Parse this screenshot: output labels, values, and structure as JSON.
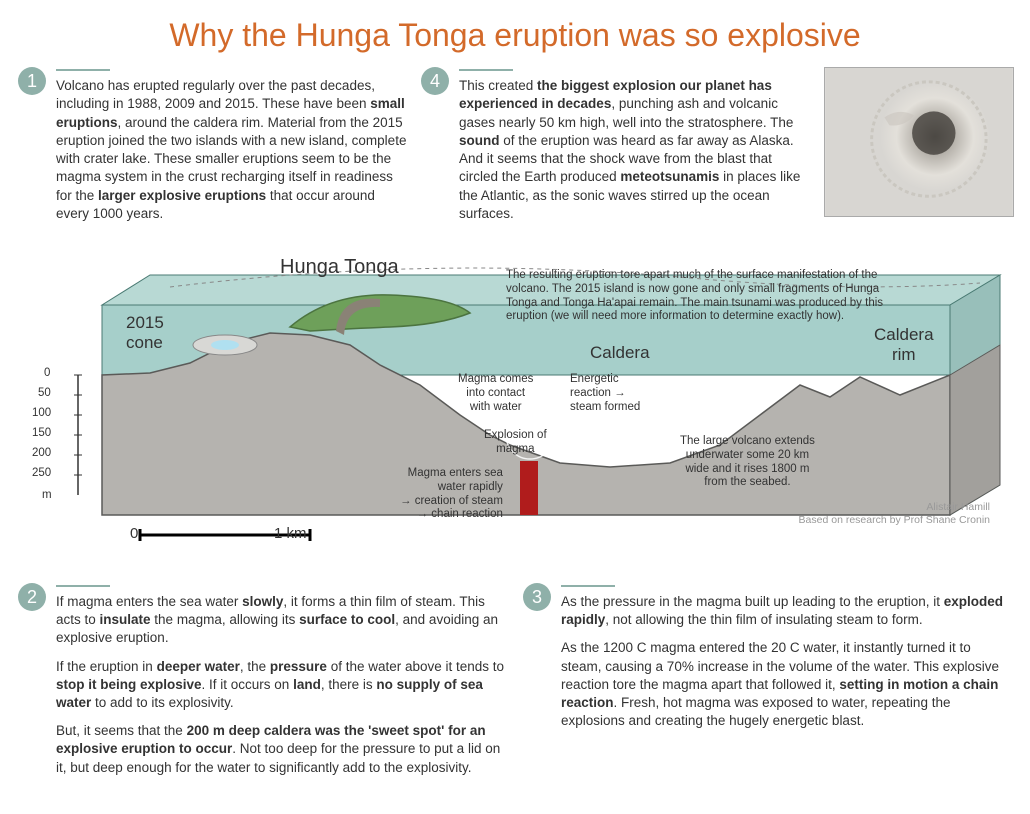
{
  "title": "Why the Hunga Tonga eruption was so explosive",
  "accent_color": "#d36a2a",
  "badge_color": "#8fb0a9",
  "rule_color": "#8fb0a9",
  "block1": {
    "num": "1",
    "html": "Volcano has erupted regularly over the past decades, including in 1988, 2009 and 2015. These have been <b>small eruptions</b>, around the caldera rim. Material from the 2015 eruption joined the two islands with a new island, complete with crater lake. These smaller eruptions seem to be the magma system in the crust recharging itself in readiness for the <b>larger explosive eruptions</b> that occur around every 1000 years."
  },
  "block4": {
    "num": "4",
    "html": "This created <b>the biggest explosion our planet has experienced in decades</b>, punching ash and volcanic gases nearly 50 km high, well into the stratosphere. The <b>sound</b> of the eruption was heard as far away as Alaska. And it seems that the shock wave from the blast that circled the Earth produced <b>meteotsunamis</b> in places like the Atlantic, as the sonic waves stirred up the ocean surfaces."
  },
  "block2": {
    "num": "2",
    "p1": "If magma enters the sea water <b>slowly</b>, it forms a thin film of steam. This acts to <b>insulate</b> the magma, allowing its <b>surface to cool</b>, and avoiding an explosive eruption.",
    "p2": "If the eruption in <b>deeper water</b>, the <b>pressure</b> of the water above it tends to <b>stop it being explosive</b>. If it occurs on <b>land</b>, there is <b>no supply of sea water</b> to add to its explosivity.",
    "p3": "But, it seems that the <b>200 m deep caldera was the 'sweet spot' for an explosive eruption to occur</b>. Not too deep for the pressure to put a lid on it, but deep enough for the water to significantly add to the explosivity."
  },
  "block3": {
    "num": "3",
    "p1": "As the pressure in the magma built up leading to the eruption, it <b>exploded rapidly</b>, not allowing the thin film of insulating steam to form.",
    "p2": "As the 1200 C magma entered the 20 C water, it instantly turned it to steam, causing a 70% increase in the volume of the water. This explosive reaction tore the magma apart that followed it, <b>setting in motion a chain reaction</b>. Fresh, hot magma was exposed to water, repeating the explosions and creating the hugely energetic blast."
  },
  "diagram": {
    "water_color": "#a6cfca",
    "rock_color": "#b5b3af",
    "rock_border": "#5a5a58",
    "island_color": "#6ea05a",
    "magma_color": "#b01c1c",
    "depth_scale": {
      "ticks": [
        "0",
        "50",
        "100",
        "150",
        "200",
        "250"
      ],
      "unit": "m"
    },
    "distance_scale": {
      "zero": "0",
      "one": "1 km"
    },
    "labels": {
      "hunga_tonga": "Hunga Tonga",
      "cone": "2015\ncone",
      "caldera": "Caldera",
      "caldera_rim": "Caldera\nrim",
      "contact": "Magma comes\ninto contact\nwith water",
      "reaction": "Energetic\nreaction →\nsteam formed",
      "explosion": "Explosion of\nmagma",
      "enters": "Magma enters sea\nwater rapidly\n→ creation of steam\n→ chain reaction",
      "extends": "The large volcano extends\nunderwater some 20 km\nwide and it rises 1800 m\nfrom the seabed.",
      "caption": "The resulting eruption tore apart much of the surface manifestation of the volcano. The 2015 island is now gone and only small fragments of Hunga Tonga and Tonga Ha'apai remain. The main tsunami was produced by this eruption (we will need more information to determine exactly how).",
      "credit1": "Alistair Hamill",
      "credit2": "Based on research by Prof Shane Cronin"
    }
  }
}
